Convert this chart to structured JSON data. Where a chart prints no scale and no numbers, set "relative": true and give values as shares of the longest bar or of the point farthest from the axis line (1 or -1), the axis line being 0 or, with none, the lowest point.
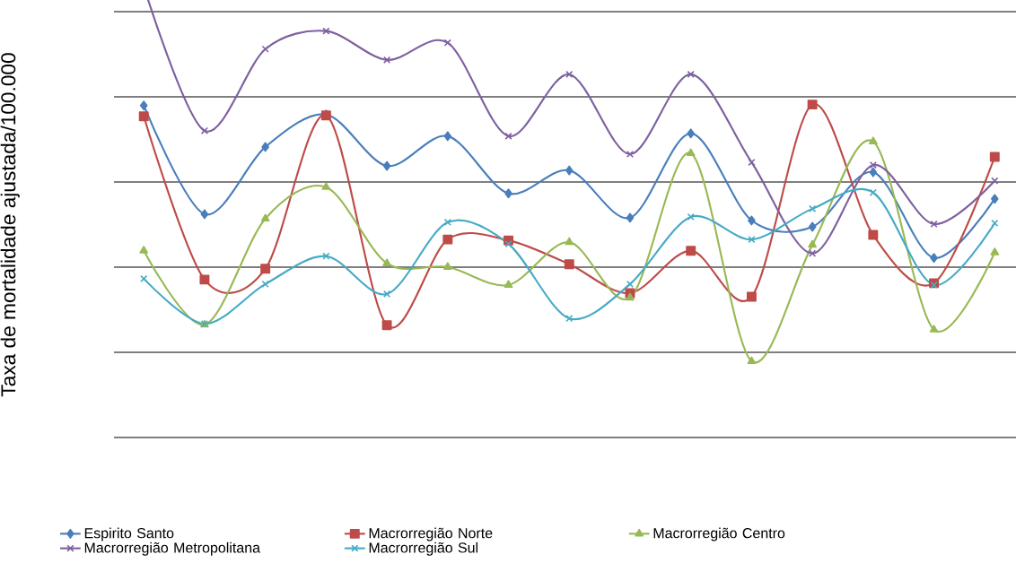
{
  "chart_data": {
    "type": "line",
    "ylabel": "Taxa de mortalidade ajustada/100.000",
    "relative": true,
    "grid": "y",
    "legend": "bottom",
    "categories": [
      null,
      null,
      null,
      null,
      null,
      null,
      null,
      null,
      null,
      null,
      null,
      null,
      null,
      null,
      null
    ],
    "series": [
      {
        "name": "Espirito Santo",
        "color": "#4a7ebb",
        "marker": "diamond",
        "values": [
          0.736,
          0.495,
          0.644,
          0.716,
          0.602,
          0.668,
          0.541,
          0.592,
          0.487,
          0.674,
          0.481,
          0.467,
          0.588,
          0.398,
          0.529
        ]
      },
      {
        "name": "Macrorregião Norte",
        "color": "#be4b48",
        "marker": "square",
        "values": [
          0.712,
          0.35,
          0.374,
          0.714,
          0.249,
          0.439,
          0.437,
          0.384,
          0.32,
          0.414,
          0.312,
          0.738,
          0.449,
          0.342,
          0.622
        ]
      },
      {
        "name": "Macrorregião Centro",
        "color": "#98b954",
        "marker": "triangle",
        "values": [
          0.414,
          0.25,
          0.485,
          0.555,
          0.386,
          0.378,
          0.338,
          0.433,
          0.31,
          0.63,
          0.169,
          0.427,
          0.656,
          0.239,
          0.41
        ]
      },
      {
        "name": "Macrorregião Metropolitana",
        "color": "#7d60a0",
        "marker": "cross",
        "values": [
          1,
          0.68,
          0.861,
          0.901,
          0.837,
          0.875,
          0.668,
          0.805,
          0.628,
          0.805,
          0.61,
          0.408,
          0.604,
          0.473,
          0.569
        ]
      },
      {
        "name": "Macrorregião Sul",
        "color": "#46aac5",
        "marker": "cross",
        "values": [
          0.352,
          0.252,
          0.34,
          0.402,
          0.318,
          0.477,
          0.429,
          0.264,
          0.34,
          0.489,
          0.439,
          0.507,
          0.543,
          0.338,
          0.475
        ]
      }
    ]
  }
}
